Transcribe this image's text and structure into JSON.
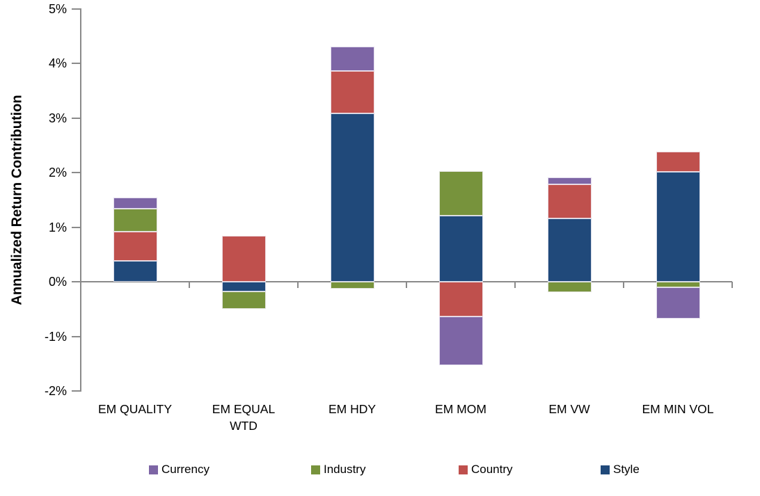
{
  "chart_data": {
    "type": "bar",
    "stacked": true,
    "title": "",
    "ylabel": "Annualized Return Contribution",
    "xlabel": "",
    "categories": [
      "EM QUALITY",
      "EM EQUAL WTD",
      "EM HDY",
      "EM MOM",
      "EM VW",
      "EM MIN VOL"
    ],
    "series": [
      {
        "name": "Style",
        "color": "#20497A",
        "values": [
          0.39,
          -0.18,
          3.09,
          1.21,
          1.16,
          2.02
        ]
      },
      {
        "name": "Country",
        "color": "#BF504D",
        "values": [
          0.53,
          0.84,
          0.78,
          -0.64,
          0.63,
          0.37
        ]
      },
      {
        "name": "Industry",
        "color": "#77933C",
        "values": [
          0.42,
          -0.31,
          -0.12,
          0.82,
          -0.19,
          -0.1
        ]
      },
      {
        "name": "Currency",
        "color": "#7D65A5",
        "values": [
          0.21,
          0.0,
          0.44,
          -0.89,
          0.13,
          -0.58
        ]
      }
    ],
    "ylim": [
      -2,
      5
    ],
    "yticks": [
      {
        "v": 5,
        "label": "5%"
      },
      {
        "v": 4,
        "label": "4%"
      },
      {
        "v": 3,
        "label": "3%"
      },
      {
        "v": 2,
        "label": "2%"
      },
      {
        "v": 1,
        "label": "1%"
      },
      {
        "v": 0,
        "label": "0%"
      },
      {
        "v": -1,
        "label": "-1%"
      },
      {
        "v": -2,
        "label": "-2%"
      }
    ],
    "grid": false,
    "axis_color": "#8A8A8A",
    "legend": {
      "position": "bottom",
      "entries": [
        "Currency",
        "Industry",
        "Country",
        "Style"
      ]
    }
  }
}
